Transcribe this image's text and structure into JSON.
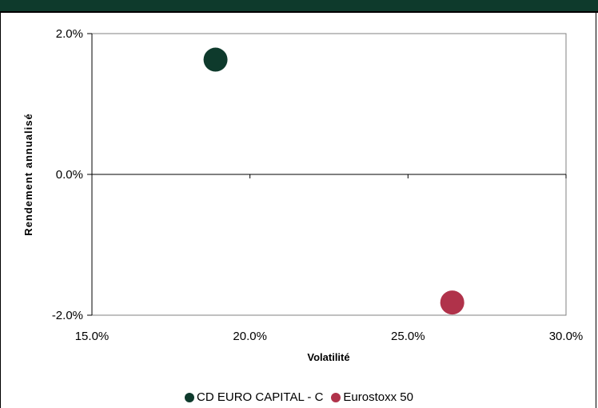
{
  "chart_data": {
    "type": "scatter",
    "title": "",
    "xlabel": "Volatilité",
    "ylabel": "Rendement annualisé",
    "xlim": [
      0.15,
      0.3
    ],
    "ylim": [
      -0.02,
      0.02
    ],
    "x_ticks": [
      "15.0%",
      "20.0%",
      "25.0%",
      "30.0%"
    ],
    "y_ticks": [
      "2.0%",
      "0.0%",
      "-2.0%"
    ],
    "grid": false,
    "legend_position": "bottom",
    "series": [
      {
        "name": "CD EURO CAPITAL - C",
        "x": [
          0.1891
        ],
        "y": [
          0.0163
        ],
        "color": "#0e3a2c"
      },
      {
        "name": "Eurostoxx 50",
        "x": [
          0.264
        ],
        "y": [
          -0.0182
        ],
        "color": "#b0324a"
      }
    ]
  }
}
